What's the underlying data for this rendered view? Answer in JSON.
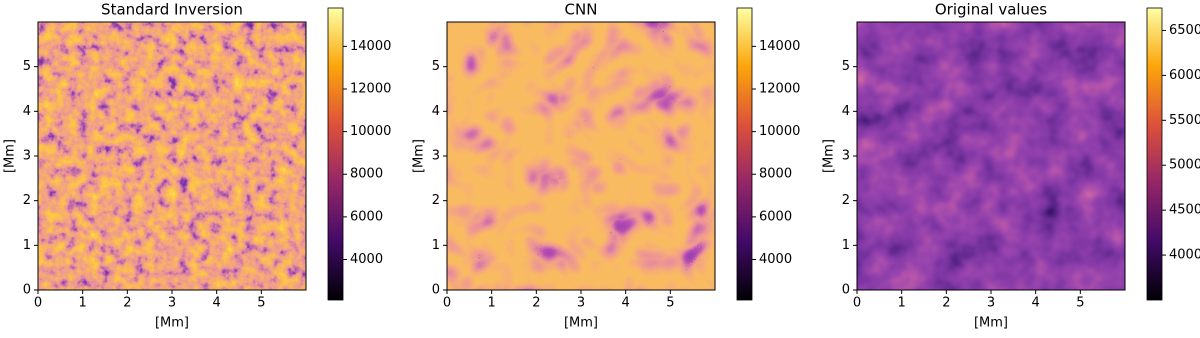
{
  "chart_data": [
    {
      "type": "heatmap",
      "title": "Standard Inversion",
      "xlabel": "[Mm]",
      "ylabel": "[Mm]",
      "xlim": [
        0,
        6
      ],
      "ylim": [
        0,
        6
      ],
      "xticks": [
        0,
        1,
        2,
        3,
        4,
        5
      ],
      "yticks": [
        0,
        1,
        2,
        3,
        4,
        5
      ],
      "colormap": "inferno",
      "clim": [
        2100,
        15800
      ],
      "cticks": [
        4000,
        6000,
        8000,
        10000,
        12000,
        14000
      ]
    },
    {
      "type": "heatmap",
      "title": "CNN",
      "xlabel": "[Mm]",
      "ylabel": "[Mm]",
      "xlim": [
        0,
        6
      ],
      "ylim": [
        0,
        6
      ],
      "xticks": [
        0,
        1,
        2,
        3,
        4,
        5
      ],
      "yticks": [
        0,
        1,
        2,
        3,
        4,
        5
      ],
      "colormap": "inferno",
      "clim": [
        2100,
        15800
      ],
      "cticks": [
        4000,
        6000,
        8000,
        10000,
        12000,
        14000
      ]
    },
    {
      "type": "heatmap",
      "title": "Original values",
      "xlabel": "[Mm]",
      "ylabel": "[Mm]",
      "xlim": [
        0,
        6
      ],
      "ylim": [
        0,
        6
      ],
      "xticks": [
        0,
        1,
        2,
        3,
        4,
        5
      ],
      "yticks": [
        0,
        1,
        2,
        3,
        4,
        5
      ],
      "colormap": "inferno",
      "clim": [
        3500,
        6750
      ],
      "cticks": [
        4000,
        4500,
        5000,
        5500,
        6000,
        6500
      ]
    }
  ]
}
